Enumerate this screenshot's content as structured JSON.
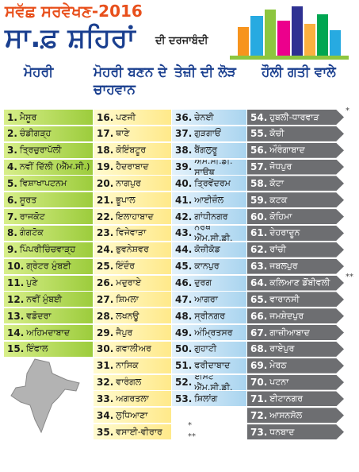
{
  "header": {
    "title": "ਸਵੱਛ ਸਰਵੇਖਣ-2016",
    "headline": "ਸਾ.ਫ਼ ਸ਼ਹਿਰਾਂ",
    "subheadline": "ਦੀ ਦਰਜਾਬੰਦੀ"
  },
  "columns": [
    {
      "heading": "ਮੋਹਰੀ",
      "rows": [
        {
          "rank": "1.",
          "name": "ਮੈਸੂਰ"
        },
        {
          "rank": "2.",
          "name": "ਚੰਡੀਗੜ੍ਹ"
        },
        {
          "rank": "3.",
          "name": "ਤ੍ਰਿਚੁਰਾਪੱਲੀ"
        },
        {
          "rank": "4.",
          "name": "ਨਵੀਂ ਦਿੱਲੀ (ਐੱਮ.ਸੀ.)"
        },
        {
          "rank": "5.",
          "name": "ਵਿਸ਼ਾਖਾਪਟਨਮ"
        },
        {
          "rank": "6.",
          "name": "ਸੂਰਤ"
        },
        {
          "rank": "7.",
          "name": "ਰਾਜਕੋਟ"
        },
        {
          "rank": "8.",
          "name": "ਗੰਗਟੋਕ"
        },
        {
          "rank": "9.",
          "name": "ਪਿੰਪਰੀਚਿੰਚਵਾੜ੍ਹ"
        },
        {
          "rank": "10.",
          "name": "ਗ੍ਰੇਟਰ ਮੁੰਬਈ"
        },
        {
          "rank": "11.",
          "name": "ਪੁਣੇ"
        },
        {
          "rank": "12.",
          "name": "ਨਵੀਂ ਮੁੰਬਈ"
        },
        {
          "rank": "13.",
          "name": "ਵਡੋਦਰਾ"
        },
        {
          "rank": "14.",
          "name": "ਅਹਿਮਦਾਬਾਦ"
        },
        {
          "rank": "15.",
          "name": "ਇੰਫਾਲ"
        }
      ]
    },
    {
      "heading": "ਮੋਹਰੀ ਬਣਨ ਦੇ ਚਾਹਵਾਨ",
      "rows": [
        {
          "rank": "16.",
          "name": "ਪਣਜੀ"
        },
        {
          "rank": "17.",
          "name": "ਥਾਣੇ"
        },
        {
          "rank": "18.",
          "name": "ਕੋਇੰਬਟੂਰ"
        },
        {
          "rank": "19.",
          "name": "ਹੈਦਰਾਬਾਦ"
        },
        {
          "rank": "20.",
          "name": "ਨਾਗਪੁਰ"
        },
        {
          "rank": "21.",
          "name": "ਭੂਪਾਲ"
        },
        {
          "rank": "22.",
          "name": "ਇਲਾਹਾਬਾਦ"
        },
        {
          "rank": "23.",
          "name": "ਵਿਜੇਵਾੜਾ"
        },
        {
          "rank": "24.",
          "name": "ਭੁਵਨੇਸ਼ਵਰ"
        },
        {
          "rank": "25.",
          "name": "ਇੰਦੌਰ"
        },
        {
          "rank": "26.",
          "name": "ਮਦੁਰਾਏ"
        },
        {
          "rank": "27.",
          "name": "ਸ਼ਿਮਲਾ"
        },
        {
          "rank": "28.",
          "name": "ਲਖਨਊ"
        },
        {
          "rank": "29.",
          "name": "ਜੈਪੁਰ"
        },
        {
          "rank": "30.",
          "name": "ਗਵਾਲੀਅਰ"
        },
        {
          "rank": "31.",
          "name": "ਨਾਸਿਕ"
        },
        {
          "rank": "32.",
          "name": "ਵਾਰੰਗਲ"
        },
        {
          "rank": "33.",
          "name": "ਅਗਰਤਲਾ"
        },
        {
          "rank": "34.",
          "name": "ਲੁਧਿਆਣਾ"
        },
        {
          "rank": "35.",
          "name": "ਵਸਾਈ-ਵੀਰਾਰ"
        }
      ]
    },
    {
      "heading": "ਤੇਜ਼ੀ ਦੀ ਲੋੜ",
      "rows": [
        {
          "rank": "36.",
          "name": "ਚੇਨਈ"
        },
        {
          "rank": "37.",
          "name": "ਗੁੜਗਾਓਂ"
        },
        {
          "rank": "38.",
          "name": "ਬੈਂਗਲੁਰੂ"
        },
        {
          "rank": "39.",
          "name": "ਐੱਮ.ਸੀ.ਡੀ. ਸਾਊਥ"
        },
        {
          "rank": "40.",
          "name": "ਤ੍ਰਿਵੇਂਦਰਮ"
        },
        {
          "rank": "41.",
          "name": "ਆਈਜ਼ੌਲ"
        },
        {
          "rank": "42.",
          "name": "ਗਾਂਧੀਨਗਰ"
        },
        {
          "rank": "43.",
          "name": "ਨੌਰਥ ਐੱਮ.ਸੀ.ਡੀ."
        },
        {
          "rank": "44.",
          "name": "ਕੋਜ਼ੀਕੋਡ"
        },
        {
          "rank": "45.",
          "name": "ਕਾਨਪੁਰ"
        },
        {
          "rank": "46.",
          "name": "ਦੁਰਗ"
        },
        {
          "rank": "47.",
          "name": "ਆਗਰਾ"
        },
        {
          "rank": "48.",
          "name": "ਸ੍ਰੀਨਗਰ"
        },
        {
          "rank": "49.",
          "name": "ਅੰਮ੍ਰਿਤਸਰ"
        },
        {
          "rank": "50.",
          "name": "ਗੁਹਾਟੀ"
        },
        {
          "rank": "51.",
          "name": "ਫਰੀਦਾਬਾਦ"
        },
        {
          "rank": "52.",
          "name": "ਈਸਟ ਐੱਮ.ਸੀ.ਡੀ."
        },
        {
          "rank": "53.",
          "name": "ਸ਼ਿਲਾਂਗ"
        }
      ],
      "notes": [
        "*",
        "**"
      ]
    },
    {
      "heading": "ਹੌਲੀ ਗਤੀ ਵਾਲੇ",
      "rows": [
        {
          "rank": "54.",
          "name": "ਹੁਬਲੀ-ਧਾਰਵਾੜ"
        },
        {
          "rank": "55.",
          "name": "ਕੋਚੀ"
        },
        {
          "rank": "56.",
          "name": "ਔਰੰਗਾਬਾਦ"
        },
        {
          "rank": "57.",
          "name": "ਜੋਧਪੁਰ"
        },
        {
          "rank": "58.",
          "name": "ਕੋਟਾ"
        },
        {
          "rank": "59.",
          "name": "ਕਟਕ"
        },
        {
          "rank": "60.",
          "name": "ਕੋਹਿਮਾ"
        },
        {
          "rank": "61.",
          "name": "ਦੇਹਰਾਦੂਨ"
        },
        {
          "rank": "62.",
          "name": "ਰਾਂਚੀ"
        },
        {
          "rank": "63.",
          "name": "ਜਬਲਪੁਰ"
        },
        {
          "rank": "64.",
          "name": "ਕਲਿਆਣ ਡੋਂਬੀਵਲੀ"
        },
        {
          "rank": "65.",
          "name": "ਵਾਰਾਨਸੀ"
        },
        {
          "rank": "66.",
          "name": "ਜਮਸ਼ੇਦਪੁਰ"
        },
        {
          "rank": "67.",
          "name": "ਗਾਜ਼ੀਆਬਾਦ"
        },
        {
          "rank": "68.",
          "name": "ਰਾਏਪੁਰ"
        },
        {
          "rank": "69.",
          "name": "ਮੇਰਠ"
        },
        {
          "rank": "70.",
          "name": "ਪਟਨਾ"
        },
        {
          "rank": "71.",
          "name": "ਈਟਾਨਗਰ"
        },
        {
          "rank": "72.",
          "name": "ਆਸਨਸੋਲ"
        },
        {
          "rank": "73.",
          "name": "ਧਨਬਾਦ"
        }
      ],
      "notes": [
        "*",
        "**"
      ]
    }
  ]
}
